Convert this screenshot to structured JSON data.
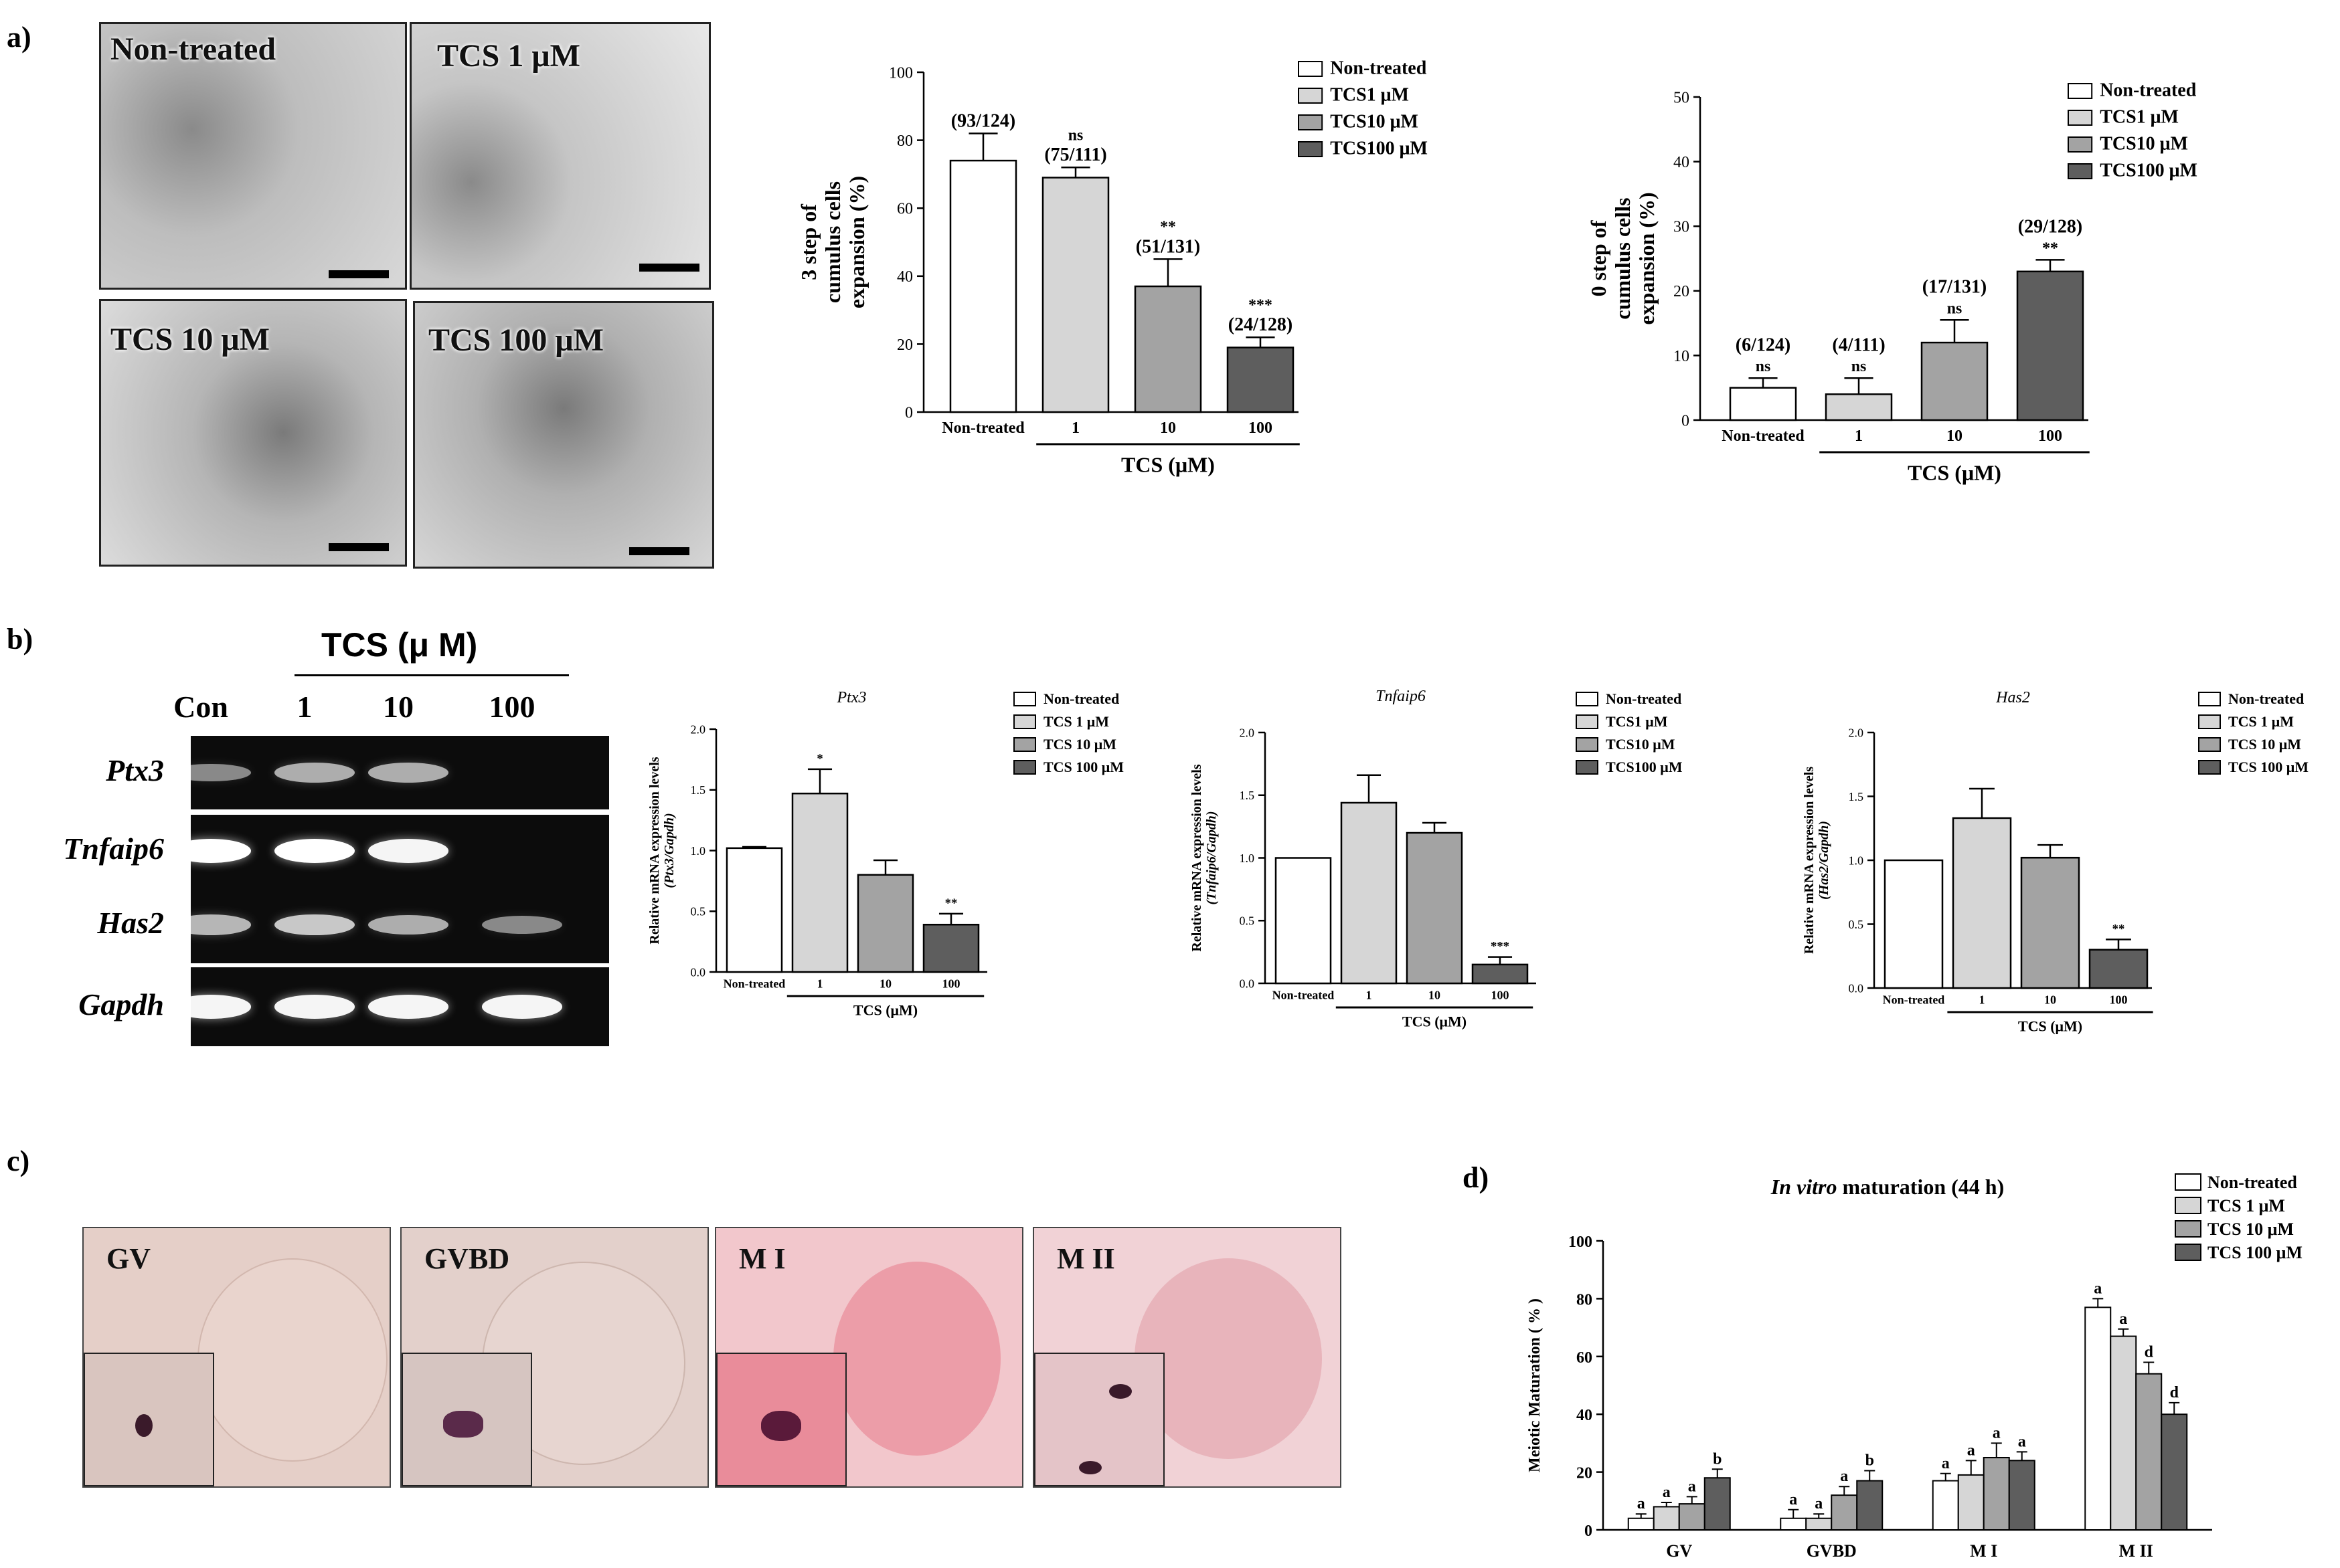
{
  "panels": {
    "a": "a)",
    "b": "b)",
    "c": "c)",
    "d": "d)"
  },
  "images_a": {
    "tl": "Non-treated",
    "tr": "TCS 1 μM",
    "bl": "TCS 10 μM",
    "br": "TCS 100 μM"
  },
  "gel": {
    "header": "TCS (μ M)",
    "lanes": [
      "Con",
      "1",
      "10",
      "100"
    ],
    "genes": [
      "Ptx3",
      "Tnfaip6",
      "Has2",
      "Gapdh"
    ],
    "band_intensity": [
      [
        0.35,
        0.55,
        0.55,
        0.0
      ],
      [
        1.0,
        1.0,
        0.95,
        0.0
      ],
      [
        0.6,
        0.7,
        0.55,
        0.35
      ],
      [
        0.95,
        0.95,
        0.95,
        0.95
      ]
    ]
  },
  "stain_c": [
    "GV",
    "GVBD",
    "M I",
    "M II"
  ],
  "colors": {
    "s0": "#ffffff",
    "s1": "#d6d6d6",
    "s2": "#a3a3a3",
    "s3": "#5e5e5e",
    "axis": "#000000"
  },
  "chart_data": [
    {
      "id": "a1",
      "type": "bar",
      "ylabel": [
        "3 step of",
        "cumulus cells",
        "expansion (%)"
      ],
      "categories": [
        "Non-treated",
        "1",
        "10",
        "100"
      ],
      "values": [
        74,
        69,
        37,
        19
      ],
      "errors": [
        8,
        3,
        8,
        3
      ],
      "annotations": [
        "(93/124)",
        "ns\n(75/111)",
        "**\n(51/131)",
        "***\n(24/128)"
      ],
      "ylim": [
        0,
        100
      ],
      "yticks": [
        0,
        20,
        40,
        60,
        80,
        100
      ],
      "group_label": "TCS (μM)",
      "legend": [
        "Non-treated",
        "TCS1 μM",
        "TCS10 μM",
        "TCS100 μM"
      ]
    },
    {
      "id": "a2",
      "type": "bar",
      "ylabel": [
        "0 step of",
        "cumulus cells",
        "expansion (%)"
      ],
      "categories": [
        "Non-treated",
        "1",
        "10",
        "100"
      ],
      "values": [
        5,
        4,
        12,
        23
      ],
      "errors": [
        1.5,
        2.5,
        3.5,
        1.8
      ],
      "annotations": [
        "(6/124)\nns",
        "(4/111)\nns",
        "(17/131)\nns",
        "(29/128)\n**"
      ],
      "ylim": [
        0,
        50
      ],
      "yticks": [
        0,
        10,
        20,
        30,
        40,
        50
      ],
      "group_label": "TCS (μM)",
      "legend": [
        "Non-treated",
        "TCS1 μM",
        "TCS10 μM",
        "TCS100 μM"
      ]
    },
    {
      "id": "b1",
      "type": "bar",
      "title": "Ptx3",
      "ylabel": [
        "Relative mRNA expression levels",
        "(Ptx3/Gapdh)"
      ],
      "categories": [
        "Non-treated",
        "1",
        "10",
        "100"
      ],
      "values": [
        1.02,
        1.47,
        0.8,
        0.39
      ],
      "errors": [
        0.01,
        0.2,
        0.12,
        0.09
      ],
      "annotations": [
        "",
        "*",
        "",
        "**"
      ],
      "ylim": [
        0,
        2.0
      ],
      "yticks": [
        0.0,
        0.5,
        1.0,
        1.5,
        2.0
      ],
      "group_label": "TCS (μM)",
      "legend": [
        "Non-treated",
        "TCS 1 μM",
        "TCS 10 μM",
        "TCS 100 μM"
      ]
    },
    {
      "id": "b2",
      "type": "bar",
      "title": "Tnfaip6",
      "ylabel": [
        "Relative mRNA expression levels",
        "(Tnfaip6/Gapdh)"
      ],
      "categories": [
        "Non-treated",
        "1",
        "10",
        "100"
      ],
      "values": [
        1.0,
        1.44,
        1.2,
        0.15
      ],
      "errors": [
        0.0,
        0.22,
        0.08,
        0.06
      ],
      "annotations": [
        "",
        "",
        "",
        "***"
      ],
      "ylim": [
        0,
        2.0
      ],
      "yticks": [
        0.0,
        0.5,
        1.0,
        1.5,
        2.0
      ],
      "group_label": "TCS (μM)",
      "legend": [
        "Non-treated",
        "TCS1 μM",
        "TCS10 μM",
        "TCS100 μM"
      ]
    },
    {
      "id": "b3",
      "type": "bar",
      "title": "Has2",
      "ylabel": [
        "Relative mRNA expression levels",
        "(Has2/Gapdh)"
      ],
      "categories": [
        "Non-treated",
        "1",
        "10",
        "100"
      ],
      "values": [
        1.0,
        1.33,
        1.02,
        0.3
      ],
      "errors": [
        0.0,
        0.23,
        0.1,
        0.08
      ],
      "annotations": [
        "",
        "",
        "",
        "**"
      ],
      "ylim": [
        0,
        2.0
      ],
      "yticks": [
        0.0,
        0.5,
        1.0,
        1.5,
        2.0
      ],
      "group_label": "TCS (μM)",
      "legend": [
        "Non-treated",
        "TCS 1 μM",
        "TCS 10 μM",
        "TCS 100 μM"
      ]
    },
    {
      "id": "d",
      "type": "bar",
      "title": "In vitro maturation (44 h)",
      "ylabel": [
        "Meiotic Maturation ( % )"
      ],
      "categories": [
        "GV",
        "GVBD",
        "M I",
        "M II"
      ],
      "series": [
        {
          "name": "Non-treated",
          "values": [
            4,
            4,
            17,
            77
          ],
          "errors": [
            1.5,
            3,
            2.5,
            3
          ],
          "letters": [
            "a",
            "a",
            "a",
            "a"
          ]
        },
        {
          "name": "TCS 1 μM",
          "values": [
            8,
            4,
            19,
            67
          ],
          "errors": [
            1.5,
            1.5,
            5,
            2.5
          ],
          "letters": [
            "a",
            "a",
            "a",
            "a"
          ]
        },
        {
          "name": "TCS 10 μM",
          "values": [
            9,
            12,
            25,
            54
          ],
          "errors": [
            2.5,
            3,
            5,
            4
          ],
          "letters": [
            "a",
            "a",
            "a",
            "d"
          ]
        },
        {
          "name": "TCS 100 μM",
          "values": [
            18,
            17,
            24,
            40
          ],
          "errors": [
            3,
            3.5,
            3,
            4
          ],
          "letters": [
            "b",
            "b",
            "a",
            "d"
          ]
        }
      ],
      "ylim": [
        0,
        100
      ],
      "yticks": [
        0,
        20,
        40,
        60,
        80,
        100
      ],
      "legend": [
        "Non-treated",
        "TCS 1 μM",
        "TCS 10 μM",
        "TCS 100 μM"
      ]
    }
  ]
}
